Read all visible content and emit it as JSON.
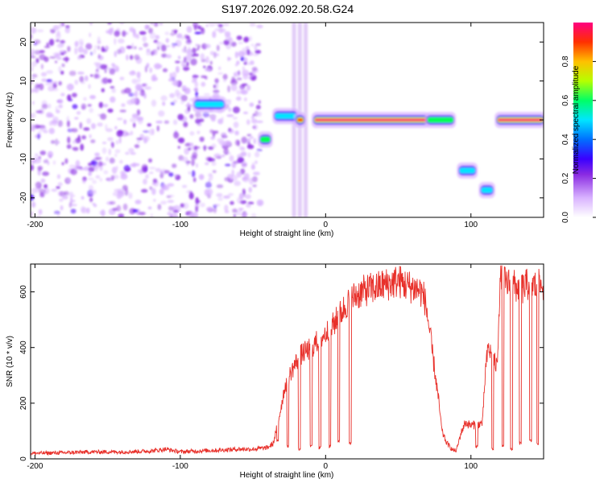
{
  "title": "S197.2026.092.20.58.G24",
  "colors": {
    "snr_line": "#e8302a",
    "cmap": [
      "#ffffff",
      "#d9b3ff",
      "#8a2be2",
      "#4b00ff",
      "#0050ff",
      "#00e5ff",
      "#00ff55",
      "#b6ff00",
      "#ffd000",
      "#ff3300",
      "#ff0077"
    ]
  },
  "chart_data": [
    {
      "type": "heatmap",
      "name": "spectrogram",
      "xlabel": "Height of straight line (km)",
      "ylabel": "Frequency (Hz)",
      "xlim": [
        -203,
        150
      ],
      "ylim": [
        -25,
        25
      ],
      "xticks": [
        -200,
        -100,
        0,
        100
      ],
      "xtick_labels": [
        "-200",
        "-100",
        "0",
        "100"
      ],
      "yticks": [
        -20,
        -10,
        0,
        10,
        20
      ],
      "ytick_labels": [
        "-20",
        "-10",
        "0",
        "10",
        "20"
      ],
      "noise_region": {
        "x_from": -203,
        "x_to": -45,
        "freq_from": -25,
        "freq_to": 25,
        "amplitude_max": 0.25
      },
      "features": [
        {
          "x0": -90,
          "x1": -70,
          "freq": 4,
          "amp": 0.45
        },
        {
          "x0": -45,
          "x1": -38,
          "freq": -5,
          "amp": 0.55
        },
        {
          "x0": -35,
          "x1": -20,
          "freq": 1,
          "amp": 0.5
        },
        {
          "x0": -20,
          "x1": -15,
          "freq": 0,
          "amp": 0.9
        },
        {
          "x0": -8,
          "x1": 70,
          "freq": 0,
          "amp": 0.98
        },
        {
          "x0": 70,
          "x1": 88,
          "freq": 0,
          "amp": 0.55
        },
        {
          "x0": 92,
          "x1": 103,
          "freq": -13,
          "amp": 0.45
        },
        {
          "x0": 107,
          "x1": 115,
          "freq": -18,
          "amp": 0.45
        },
        {
          "x0": 118,
          "x1": 150,
          "freq": 0,
          "amp": 0.95
        }
      ],
      "colorbar": {
        "label": "Normalized spectral amplitude",
        "range": [
          0,
          1
        ],
        "ticks": [
          0.0,
          0.2,
          0.4,
          0.6,
          0.8
        ],
        "tick_labels": [
          "0.0",
          "0.2",
          "0.4",
          "0.6",
          "0.8"
        ]
      }
    },
    {
      "type": "line",
      "name": "snr",
      "xlabel": "Height of straight line (km)",
      "ylabel": "SNR (10 * v/v)",
      "xlim": [
        -203,
        150
      ],
      "ylim": [
        0,
        700
      ],
      "xticks": [
        -200,
        -100,
        0,
        100
      ],
      "xtick_labels": [
        "-200",
        "-100",
        "0",
        "100"
      ],
      "yticks": [
        0,
        200,
        400,
        600
      ],
      "ytick_labels": [
        "0",
        "200",
        "400",
        "600"
      ],
      "x": [
        -203,
        -180,
        -160,
        -140,
        -120,
        -110,
        -100,
        -90,
        -80,
        -70,
        -60,
        -50,
        -40,
        -36,
        -32,
        -28,
        -24,
        -20,
        -16,
        -12,
        -8,
        -4,
        0,
        5,
        10,
        15,
        20,
        25,
        30,
        35,
        40,
        45,
        50,
        55,
        60,
        65,
        68,
        70,
        72,
        75,
        78,
        80,
        83,
        86,
        88,
        90,
        93,
        96,
        100,
        105,
        108,
        110,
        112,
        115,
        118,
        120,
        125,
        130,
        135,
        140,
        145,
        150
      ],
      "y": [
        20,
        22,
        25,
        25,
        28,
        35,
        25,
        28,
        30,
        32,
        35,
        35,
        40,
        55,
        150,
        260,
        310,
        350,
        380,
        390,
        410,
        430,
        450,
        480,
        520,
        560,
        585,
        600,
        610,
        615,
        625,
        630,
        640,
        625,
        615,
        605,
        580,
        520,
        440,
        320,
        200,
        100,
        60,
        40,
        30,
        30,
        90,
        130,
        120,
        125,
        130,
        320,
        400,
        360,
        330,
        640,
        630,
        620,
        610,
        630,
        620,
        625
      ],
      "dips": [
        {
          "x": -33,
          "y": 60
        },
        {
          "x": -26,
          "y": 40
        },
        {
          "x": -18,
          "y": 30
        },
        {
          "x": -10,
          "y": 40
        },
        {
          "x": -4,
          "y": 35
        },
        {
          "x": 3,
          "y": 40
        },
        {
          "x": 9,
          "y": 60
        },
        {
          "x": 17,
          "y": 50
        },
        {
          "x": 104,
          "y": 40
        },
        {
          "x": 115,
          "y": 30
        },
        {
          "x": 122,
          "y": 40
        },
        {
          "x": 128,
          "y": 30
        },
        {
          "x": 134,
          "y": 50
        },
        {
          "x": 141,
          "y": 60
        },
        {
          "x": 146,
          "y": 50
        }
      ]
    }
  ]
}
